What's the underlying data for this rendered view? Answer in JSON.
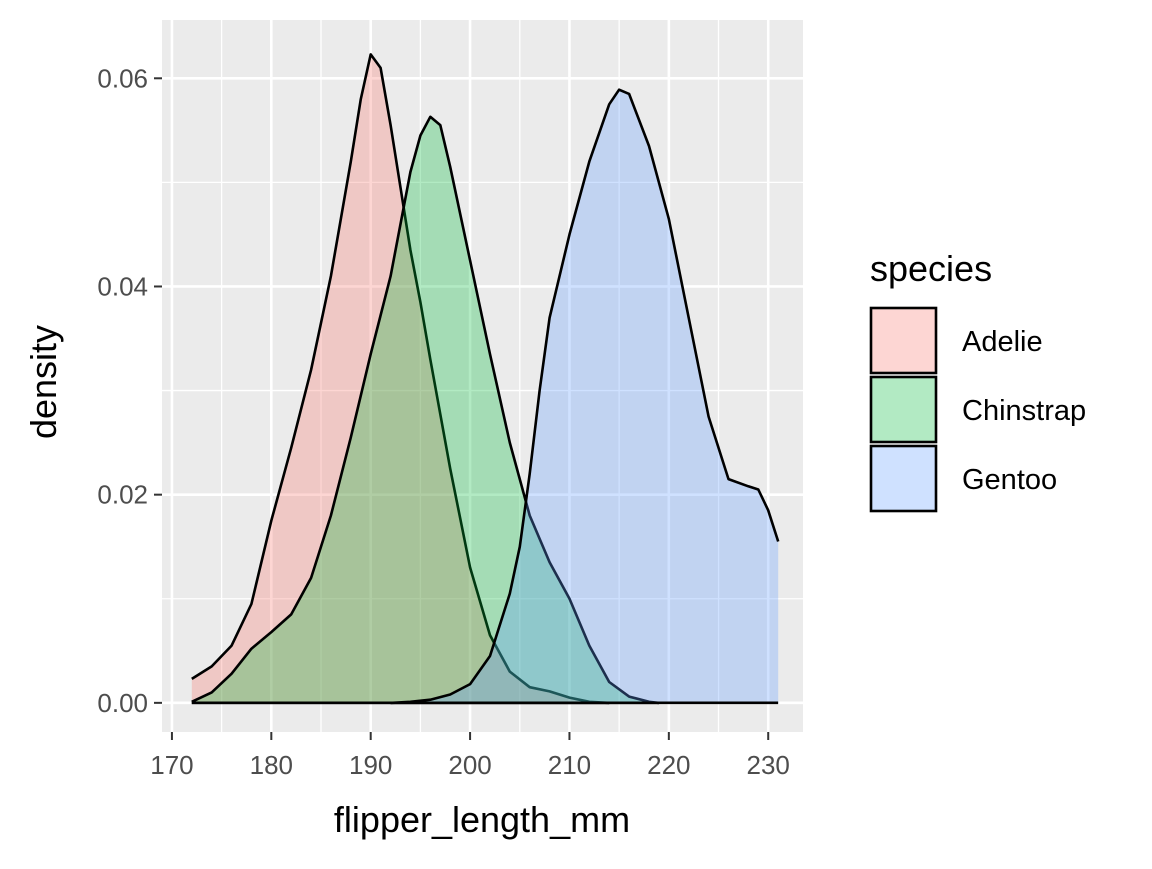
{
  "chart_data": {
    "type": "area",
    "title": "",
    "xlabel": "flipper_length_mm",
    "ylabel": "density",
    "xlim": [
      169,
      233.5
    ],
    "ylim": [
      -0.0028,
      0.0656
    ],
    "x_ticks": [
      170,
      180,
      190,
      200,
      210,
      220,
      230
    ],
    "y_ticks": [
      0.0,
      0.02,
      0.04,
      0.06
    ],
    "x_tick_labels": [
      "170",
      "180",
      "190",
      "200",
      "210",
      "220",
      "230"
    ],
    "y_tick_labels": [
      "0.00",
      "0.02",
      "0.04",
      "0.06"
    ],
    "grid": true,
    "legend": {
      "title": "species",
      "position": "right"
    },
    "series": [
      {
        "name": "Adelie",
        "color": "#F8766D",
        "points": [
          [
            172,
            0.0023
          ],
          [
            174,
            0.0035
          ],
          [
            176,
            0.0055
          ],
          [
            178,
            0.0095
          ],
          [
            180,
            0.0175
          ],
          [
            182,
            0.0245
          ],
          [
            184,
            0.032
          ],
          [
            186,
            0.041
          ],
          [
            188,
            0.052
          ],
          [
            189,
            0.058
          ],
          [
            190,
            0.0623
          ],
          [
            191,
            0.061
          ],
          [
            192,
            0.0555
          ],
          [
            193,
            0.0495
          ],
          [
            194,
            0.0435
          ],
          [
            195,
            0.0385
          ],
          [
            196,
            0.033
          ],
          [
            198,
            0.0225
          ],
          [
            200,
            0.013
          ],
          [
            202,
            0.0065
          ],
          [
            204,
            0.003
          ],
          [
            206,
            0.0015
          ],
          [
            208,
            0.0011
          ],
          [
            210,
            0.0005
          ],
          [
            212,
            0.0001
          ],
          [
            214,
            0.0
          ]
        ]
      },
      {
        "name": "Chinstrap",
        "color": "#00BA38",
        "points": [
          [
            172,
            0.0001
          ],
          [
            174,
            0.001
          ],
          [
            176,
            0.0028
          ],
          [
            178,
            0.0052
          ],
          [
            180,
            0.0068
          ],
          [
            182,
            0.0085
          ],
          [
            184,
            0.012
          ],
          [
            186,
            0.018
          ],
          [
            188,
            0.0255
          ],
          [
            190,
            0.0335
          ],
          [
            192,
            0.041
          ],
          [
            194,
            0.051
          ],
          [
            195,
            0.0545
          ],
          [
            196,
            0.0563
          ],
          [
            197,
            0.0555
          ],
          [
            198,
            0.0515
          ],
          [
            200,
            0.0425
          ],
          [
            202,
            0.0335
          ],
          [
            204,
            0.025
          ],
          [
            206,
            0.018
          ],
          [
            208,
            0.0135
          ],
          [
            210,
            0.01
          ],
          [
            212,
            0.0055
          ],
          [
            214,
            0.002
          ],
          [
            216,
            0.0006
          ],
          [
            218,
            0.0001
          ],
          [
            219,
            0.0
          ]
        ]
      },
      {
        "name": "Gentoo",
        "color": "#619CFF",
        "points": [
          [
            192,
            0.0
          ],
          [
            194,
            0.0001
          ],
          [
            196,
            0.0003
          ],
          [
            198,
            0.0008
          ],
          [
            200,
            0.0018
          ],
          [
            202,
            0.0045
          ],
          [
            204,
            0.0105
          ],
          [
            205,
            0.015
          ],
          [
            206,
            0.022
          ],
          [
            207,
            0.03
          ],
          [
            208,
            0.037
          ],
          [
            210,
            0.045
          ],
          [
            212,
            0.052
          ],
          [
            214,
            0.0575
          ],
          [
            215,
            0.0589
          ],
          [
            216,
            0.0585
          ],
          [
            218,
            0.0535
          ],
          [
            220,
            0.0465
          ],
          [
            222,
            0.037
          ],
          [
            224,
            0.0275
          ],
          [
            226,
            0.0215
          ],
          [
            228,
            0.0208
          ],
          [
            229,
            0.0205
          ],
          [
            230,
            0.0185
          ],
          [
            231,
            0.0155
          ]
        ]
      }
    ]
  }
}
